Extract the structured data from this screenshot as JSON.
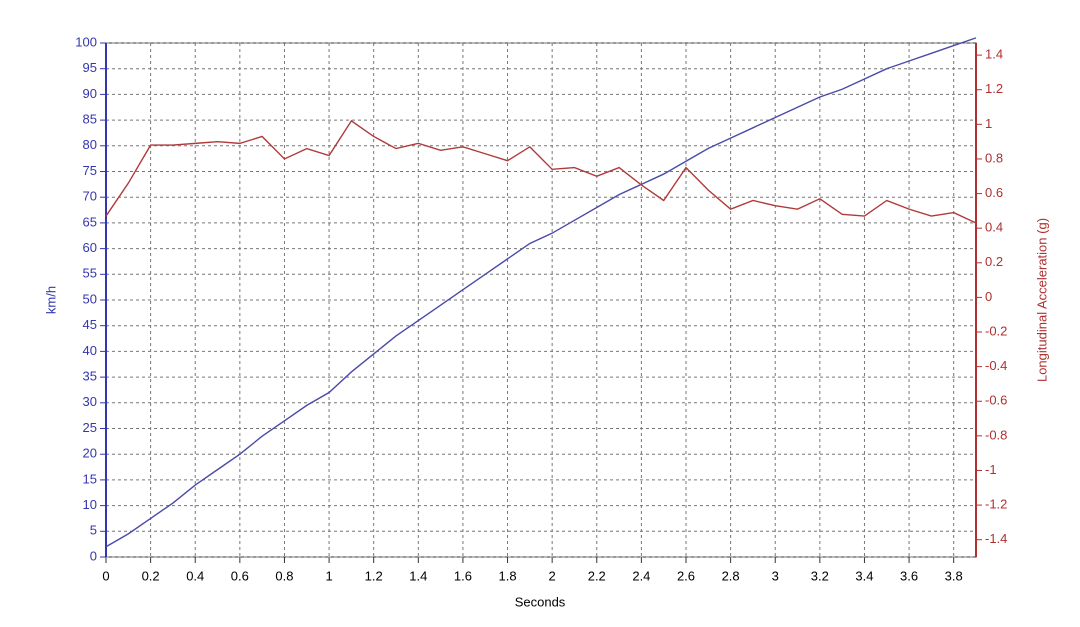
{
  "chart_data": {
    "type": "line",
    "x_label": "Seconds",
    "y_label": "km/h",
    "y2_label": "Longitudinal Acceleration (g)",
    "x": [
      0,
      0.1,
      0.2,
      0.3,
      0.4,
      0.5,
      0.6,
      0.7,
      0.8,
      0.9,
      1,
      1.1,
      1.2,
      1.3,
      1.4,
      1.5,
      1.6,
      1.7,
      1.8,
      1.9,
      2,
      2.1,
      2.2,
      2.3,
      2.4,
      2.5,
      2.6,
      2.7,
      2.8,
      2.9,
      3,
      3.1,
      3.2,
      3.3,
      3.4,
      3.5,
      3.6,
      3.7,
      3.8,
      3.9
    ],
    "series": [
      {
        "name": "km/h",
        "color": "#4a4aa8",
        "axis": "y",
        "values": [
          2,
          4.5,
          7.5,
          10.5,
          14,
          17,
          20,
          23.5,
          26.5,
          29.5,
          32,
          36,
          39.5,
          43,
          46,
          49,
          52,
          55,
          58,
          61,
          63,
          65.5,
          68,
          70.5,
          72.5,
          74.5,
          77,
          79.5,
          81.5,
          83.5,
          85.5,
          87.5,
          89.5,
          91,
          93,
          95,
          96.5,
          98,
          99.5,
          101
        ]
      },
      {
        "name": "Longitudinal Acceleration (g)",
        "color": "#b03a3a",
        "axis": "y2",
        "values": [
          0.47,
          0.66,
          0.88,
          0.88,
          0.89,
          0.9,
          0.89,
          0.93,
          0.8,
          0.86,
          0.82,
          1.02,
          0.93,
          0.86,
          0.89,
          0.85,
          0.87,
          0.83,
          0.79,
          0.87,
          0.74,
          0.75,
          0.7,
          0.75,
          0.65,
          0.56,
          0.75,
          0.62,
          0.51,
          0.56,
          0.53,
          0.51,
          0.57,
          0.48,
          0.47,
          0.56,
          0.51,
          0.47,
          0.49,
          0.43
        ]
      }
    ],
    "xlim": [
      0,
      3.9
    ],
    "xticks": [
      0,
      0.2,
      0.4,
      0.6,
      0.8,
      1,
      1.2,
      1.4,
      1.6,
      1.8,
      2,
      2.2,
      2.4,
      2.6,
      2.8,
      3,
      3.2,
      3.4,
      3.6,
      3.8
    ],
    "ylim": [
      0,
      100
    ],
    "yticks": [
      0,
      5,
      10,
      15,
      20,
      25,
      30,
      35,
      40,
      45,
      50,
      55,
      60,
      65,
      70,
      75,
      80,
      85,
      90,
      95,
      100
    ],
    "y2lim": [
      -1.5,
      1.47
    ],
    "y2ticks": [
      -1.4,
      -1.2,
      -1,
      -0.8,
      -0.6,
      -0.4,
      -0.2,
      0,
      0.2,
      0.4,
      0.6,
      0.8,
      1,
      1.2,
      1.4
    ],
    "grid": true,
    "y_color": "#3535b0",
    "y2_color": "#b03030"
  }
}
